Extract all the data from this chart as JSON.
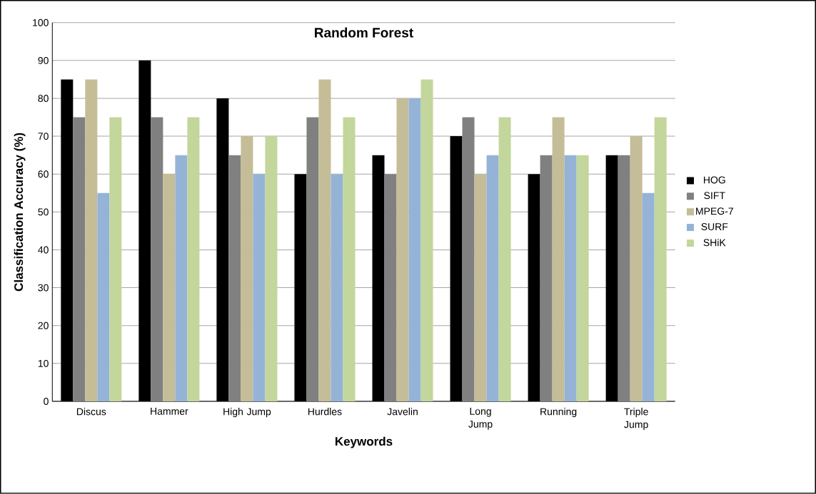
{
  "chart_data": {
    "type": "bar",
    "title": "Random Forest",
    "xlabel": "Keywords",
    "ylabel": "Classification Accuracy (%)",
    "categories": [
      "Discus",
      "Hammer",
      "High Jump",
      "Hurdles",
      "Javelin",
      "Long Jump",
      "Running",
      "Triple Jump"
    ],
    "series": [
      {
        "name": "HOG",
        "color": "#000000",
        "values": [
          85,
          90,
          80,
          60,
          65,
          70,
          60,
          65
        ]
      },
      {
        "name": "SIFT",
        "color": "#808080",
        "values": [
          75,
          75,
          65,
          75,
          60,
          75,
          65,
          65
        ]
      },
      {
        "name": "MPEG-7",
        "color": "#c4bd97",
        "values": [
          85,
          60,
          70,
          85,
          80,
          60,
          75,
          70
        ]
      },
      {
        "name": "SURF",
        "color": "#95b3d7",
        "values": [
          55,
          65,
          60,
          60,
          80,
          65,
          65,
          55
        ]
      },
      {
        "name": "SHiK",
        "color": "#c3d69b",
        "values": [
          75,
          75,
          70,
          75,
          85,
          75,
          65,
          75
        ]
      }
    ],
    "ylim": [
      0,
      100
    ],
    "yticks": [
      0,
      10,
      20,
      30,
      40,
      50,
      60,
      70,
      80,
      90,
      100
    ],
    "grid": "y",
    "legend": "right"
  }
}
